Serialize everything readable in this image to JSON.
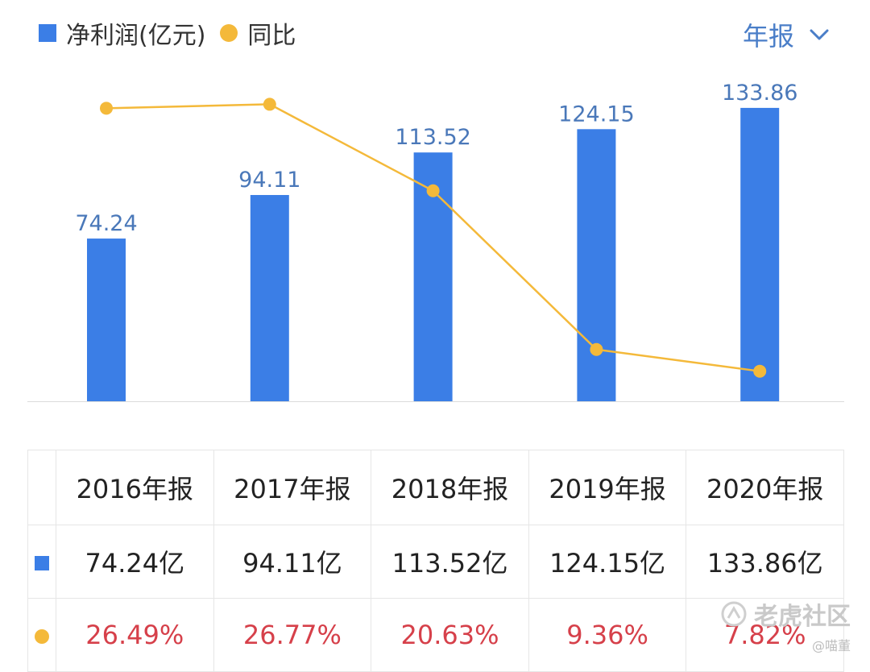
{
  "colors": {
    "bar": "#3b7ee6",
    "line": "#f4b93a",
    "bar_label": "#4a78b9",
    "yoy_text": "#d6404a",
    "period_text": "#4a7ec8",
    "axis": "#dcdcdc"
  },
  "legend": {
    "net_profit_label": "净利润(亿元)",
    "yoy_label": "同比"
  },
  "period_selector": {
    "value": "年报",
    "icon": "chevron-down-icon"
  },
  "chart_data": {
    "type": "bar+line",
    "title": "",
    "categories": [
      "2016年报",
      "2017年报",
      "2018年报",
      "2019年报",
      "2020年报"
    ],
    "series": [
      {
        "name": "净利润(亿元)",
        "type": "bar",
        "values": [
          74.24,
          94.11,
          113.52,
          124.15,
          133.86
        ],
        "value_labels": [
          "74.24",
          "94.11",
          "113.52",
          "124.15",
          "133.86"
        ]
      },
      {
        "name": "同比",
        "type": "line",
        "unit": "%",
        "values": [
          26.49,
          26.77,
          20.63,
          9.36,
          7.82
        ]
      }
    ],
    "bar_axis_range": [
      0,
      150
    ],
    "line_axis_range": [
      5.8,
      32
    ],
    "grid": false,
    "legend_position": "top-left"
  },
  "table": {
    "headers": [
      "2016年报",
      "2017年报",
      "2018年报",
      "2019年报",
      "2020年报"
    ],
    "net_profit": [
      "74.24亿",
      "94.11亿",
      "113.52亿",
      "124.15亿",
      "133.86亿"
    ],
    "yoy": [
      "26.49%",
      "26.77%",
      "20.63%",
      "9.36%",
      "7.82%"
    ]
  },
  "watermark": {
    "brand": "老虎社区",
    "user": "@喵董"
  }
}
